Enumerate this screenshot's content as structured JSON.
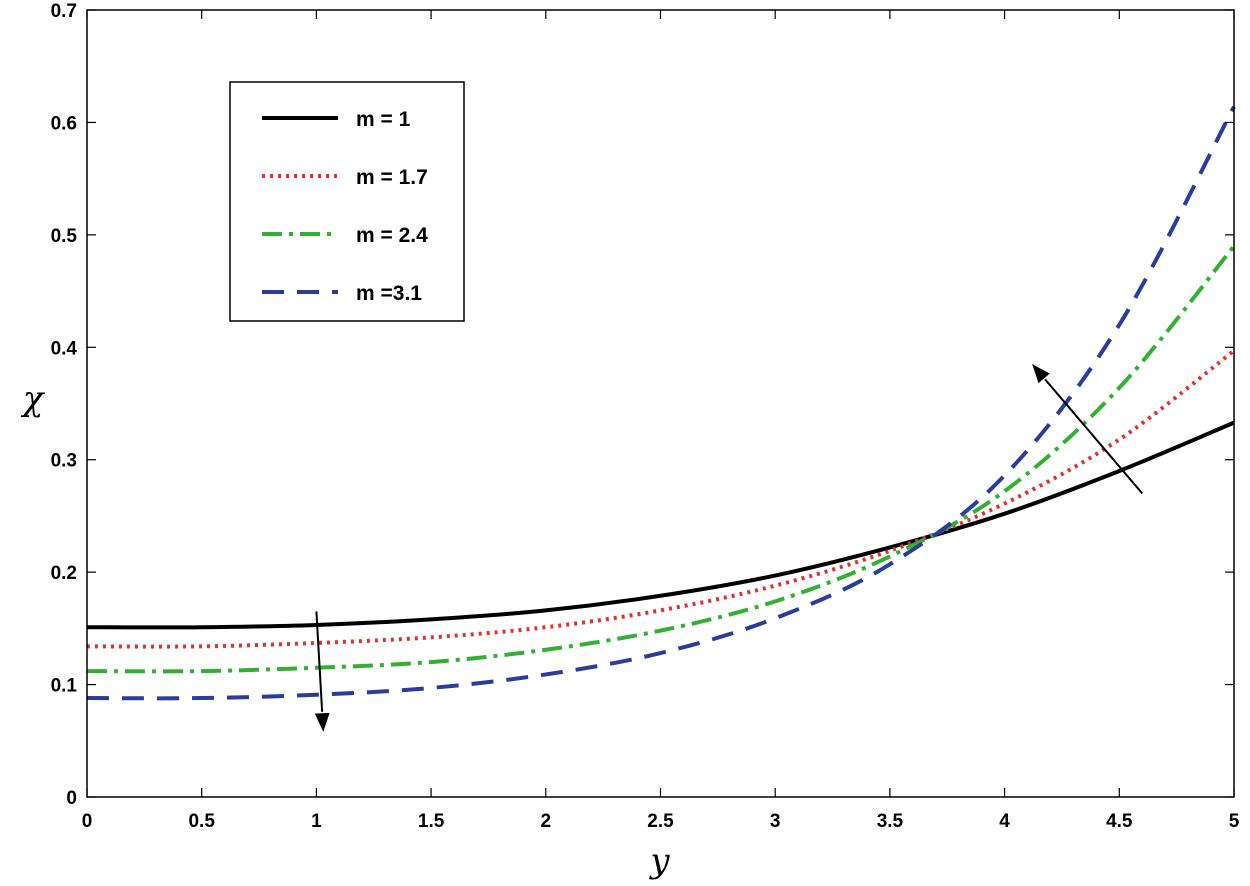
{
  "chart_data": {
    "type": "line",
    "xlabel": "y",
    "ylabel": "χ",
    "xlim": [
      0,
      5
    ],
    "ylim": [
      0,
      0.7
    ],
    "x_ticks": [
      "0",
      "0.5",
      "1",
      "1.5",
      "2",
      "2.5",
      "3",
      "3.5",
      "4",
      "4.5",
      "5"
    ],
    "y_ticks": [
      "0",
      "0.1",
      "0.2",
      "0.3",
      "0.4",
      "0.5",
      "0.6",
      "0.7"
    ],
    "grid": false,
    "legend_position": "top-left",
    "x": [
      0,
      0.5,
      1,
      1.5,
      2,
      2.5,
      3,
      3.5,
      4,
      4.5,
      5
    ],
    "series": [
      {
        "name": "m = 1",
        "color": "#000000",
        "style": "solid",
        "values": [
          0.151,
          0.151,
          0.153,
          0.158,
          0.166,
          0.179,
          0.197,
          0.222,
          0.252,
          0.29,
          0.333
        ]
      },
      {
        "name": "m = 1.7",
        "color": "#e03030",
        "style": "dotted",
        "values": [
          0.134,
          0.134,
          0.137,
          0.142,
          0.151,
          0.166,
          0.188,
          0.219,
          0.261,
          0.318,
          0.397
        ]
      },
      {
        "name": "m = 2.4",
        "color": "#33b033",
        "style": "dashdot",
        "values": [
          0.112,
          0.112,
          0.115,
          0.12,
          0.131,
          0.148,
          0.174,
          0.214,
          0.272,
          0.364,
          0.49
        ]
      },
      {
        "name": "m =3.1",
        "color": "#2a3c9c",
        "style": "dashed",
        "values": [
          0.088,
          0.088,
          0.091,
          0.097,
          0.109,
          0.128,
          0.159,
          0.207,
          0.286,
          0.42,
          0.614
        ]
      }
    ],
    "arrows": [
      {
        "from": [
          1.0,
          0.165
        ],
        "to": [
          1.03,
          0.058
        ]
      },
      {
        "from": [
          4.6,
          0.27
        ],
        "to": [
          4.12,
          0.385
        ]
      }
    ]
  }
}
